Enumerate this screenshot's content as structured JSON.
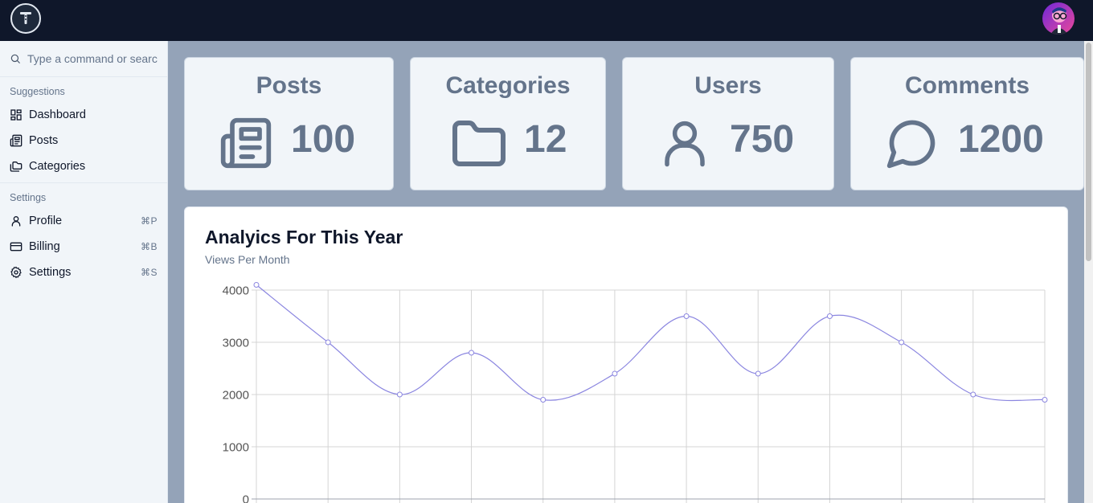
{
  "search": {
    "placeholder": "Type a command or search..."
  },
  "sidebar": {
    "groups": [
      {
        "label": "Suggestions",
        "items": [
          {
            "label": "Dashboard",
            "shortcut": ""
          },
          {
            "label": "Posts",
            "shortcut": ""
          },
          {
            "label": "Categories",
            "shortcut": ""
          }
        ]
      },
      {
        "label": "Settings",
        "items": [
          {
            "label": "Profile",
            "shortcut": "⌘P"
          },
          {
            "label": "Billing",
            "shortcut": "⌘B"
          },
          {
            "label": "Settings",
            "shortcut": "⌘S"
          }
        ]
      }
    ]
  },
  "stats": [
    {
      "label": "Posts",
      "value": "100",
      "icon": "newspaper-icon"
    },
    {
      "label": "Categories",
      "value": "12",
      "icon": "folder-icon"
    },
    {
      "label": "Users",
      "value": "750",
      "icon": "user-icon"
    },
    {
      "label": "Comments",
      "value": "1200",
      "icon": "message-circle-icon"
    }
  ],
  "analytics": {
    "title": "Analyics For This Year",
    "subtitle": "Views Per Month"
  },
  "colors": {
    "topbar": "#0f172a",
    "background": "#94a3b8",
    "line": "#8b86e0"
  },
  "chart_data": {
    "type": "line",
    "title": "",
    "xlabel": "",
    "ylabel": "",
    "ylim": [
      0,
      4000
    ],
    "yticks": [
      0,
      1000,
      2000,
      3000,
      4000
    ],
    "grid": true,
    "series": [
      {
        "values": [
          4100,
          3000,
          2000,
          2800,
          1900,
          2400,
          3500,
          2400,
          3500,
          3000,
          2000,
          1900
        ]
      }
    ]
  }
}
